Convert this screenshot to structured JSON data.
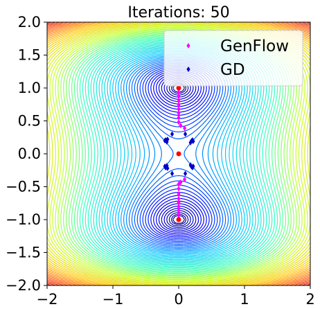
{
  "chart_data": {
    "type": "scatter",
    "title": "Iterations: 50",
    "xlabel": "",
    "ylabel": "",
    "xlim": [
      -2,
      2
    ],
    "ylim": [
      -2,
      2
    ],
    "xticks": [
      -2,
      -1,
      0,
      1,
      2
    ],
    "yticks": [
      -2.0,
      -1.5,
      -1.0,
      -0.5,
      0.0,
      0.5,
      1.0,
      1.5,
      2.0
    ],
    "xtick_labels": [
      "−2",
      "−1",
      "0",
      "1",
      "2"
    ],
    "ytick_labels": [
      "2.0",
      "1.5",
      "1.0",
      "0.5",
      "0.0",
      "−0.5",
      "−1.0",
      "−1.5",
      "−2.0"
    ],
    "background": "contour plot of a double-well potential (minima near (0, 1) and (0, −1))",
    "legend_position": "top-right",
    "grid": false,
    "series": [
      {
        "name": "GenFlow",
        "color": "#ff00ff",
        "marker": "diamond",
        "points": [
          [
            0,
            0.98
          ],
          [
            0,
            0.93
          ],
          [
            0,
            0.87
          ],
          [
            0,
            0.8
          ],
          [
            0,
            0.74
          ],
          [
            0,
            0.68
          ],
          [
            0,
            0.62
          ],
          [
            0,
            0.55
          ],
          [
            0,
            0.48
          ],
          [
            0.03,
            0.43
          ],
          [
            0.09,
            0.39
          ],
          [
            0,
            -0.98
          ],
          [
            0,
            -0.92
          ],
          [
            0,
            -0.86
          ],
          [
            0,
            -0.8
          ],
          [
            0,
            -0.74
          ],
          [
            0,
            -0.68
          ],
          [
            0,
            -0.61
          ],
          [
            0,
            -0.53
          ],
          [
            0,
            -0.46
          ],
          [
            0.03,
            -0.43
          ],
          [
            0.09,
            -0.39
          ]
        ]
      },
      {
        "name": "GD",
        "color": "#0000cc",
        "marker": "diamond",
        "points": [
          [
            -0.18,
            0.18
          ],
          [
            -0.19,
            0.2
          ],
          [
            -0.2,
            0.21
          ],
          [
            -0.21,
            0.2
          ],
          [
            -0.17,
            0.22
          ],
          [
            0.19,
            0.19
          ],
          [
            0.2,
            0.2
          ],
          [
            0.21,
            0.21
          ],
          [
            0.18,
            0.17
          ],
          [
            0.22,
            0.19
          ],
          [
            -0.18,
            -0.18
          ],
          [
            -0.19,
            -0.2
          ],
          [
            -0.2,
            -0.21
          ],
          [
            -0.21,
            -0.19
          ],
          [
            -0.17,
            -0.22
          ],
          [
            0.19,
            -0.19
          ],
          [
            0.2,
            -0.2
          ],
          [
            0.21,
            -0.21
          ],
          [
            0.18,
            -0.17
          ],
          [
            0.22,
            -0.19
          ],
          [
            -0.1,
            0.3
          ],
          [
            0.1,
            0.3
          ],
          [
            -0.1,
            -0.3
          ],
          [
            0.1,
            -0.3
          ]
        ]
      },
      {
        "name": "",
        "color": "#ff0000",
        "marker": "dot",
        "points": [
          [
            0,
            1.0
          ],
          [
            0,
            0.0
          ],
          [
            0,
            -1.0
          ]
        ]
      }
    ]
  }
}
